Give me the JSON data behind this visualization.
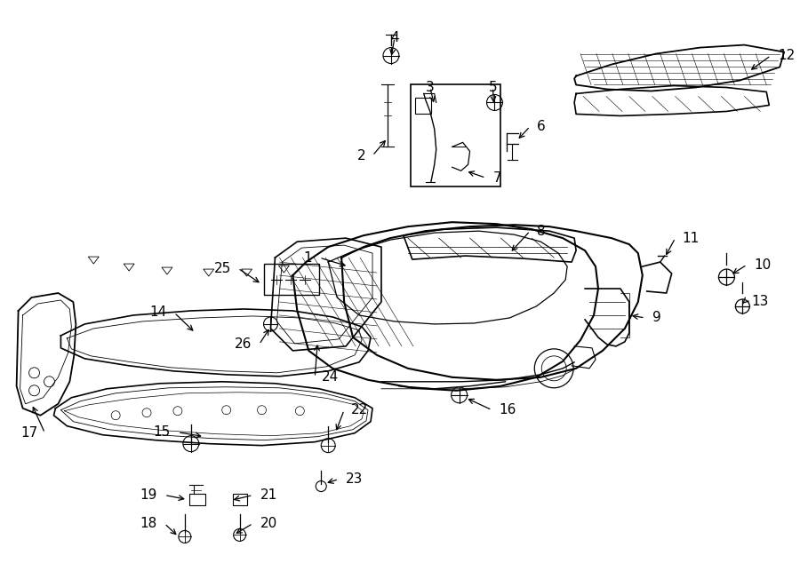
{
  "bg_color": "#ffffff",
  "line_color": "#000000",
  "fig_width": 9.0,
  "fig_height": 6.61,
  "dpi": 100,
  "fontsize": 11
}
